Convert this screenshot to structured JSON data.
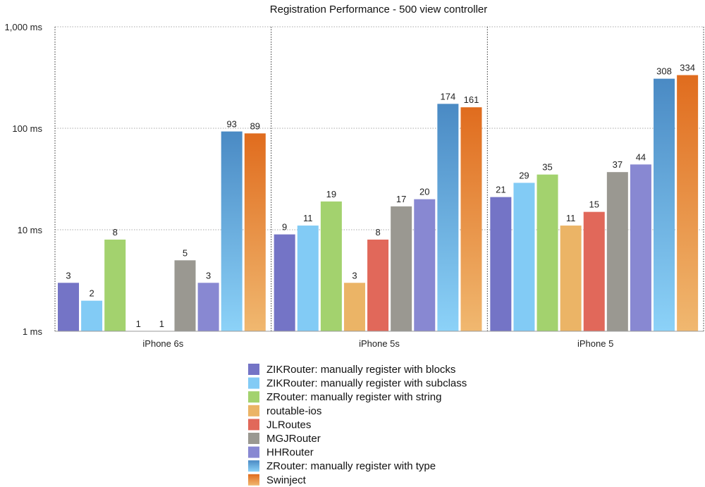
{
  "chart_data": {
    "type": "bar",
    "title": "Registration Performance - 500 view controller",
    "xlabel": "",
    "ylabel": "",
    "yscale": "log",
    "ylim": [
      1,
      1000
    ],
    "yticks": [
      {
        "value": 1,
        "label": "1 ms"
      },
      {
        "value": 10,
        "label": "10 ms"
      },
      {
        "value": 100,
        "label": "100 ms"
      },
      {
        "value": 1000,
        "label": "1,000 ms"
      }
    ],
    "grid": true,
    "legend_position": "bottom",
    "categories": [
      "iPhone 6s",
      "iPhone 5s",
      "iPhone 5"
    ],
    "series": [
      {
        "name": "ZIKRouter: manually register with blocks",
        "color": "#7474c6",
        "values": [
          3,
          9,
          21
        ]
      },
      {
        "name": "ZIKRouter: manually register with subclass",
        "color": "#82cbf5",
        "values": [
          2,
          11,
          29
        ]
      },
      {
        "name": "ZRouter: manually register with string",
        "color": "#a3d26e",
        "values": [
          8,
          19,
          35
        ]
      },
      {
        "name": "routable-ios",
        "color": "#ebb466",
        "values": [
          1,
          3,
          11
        ]
      },
      {
        "name": "JLRoutes",
        "color": "#e1685a",
        "values": [
          1,
          8,
          15
        ]
      },
      {
        "name": "MGJRouter",
        "color": "#9a9891",
        "values": [
          5,
          17,
          37
        ]
      },
      {
        "name": "HHRouter",
        "color": "#8888d2",
        "values": [
          3,
          20,
          44
        ]
      },
      {
        "name": "ZRouter: manually register with type",
        "color": "#4a8ac4",
        "color2": "#8cd2f8",
        "gradient": true,
        "values": [
          93,
          174,
          308
        ]
      },
      {
        "name": "Swinject",
        "color": "#e06c1e",
        "color2": "#f0b870",
        "gradient": true,
        "values": [
          89,
          161,
          334
        ]
      }
    ]
  }
}
